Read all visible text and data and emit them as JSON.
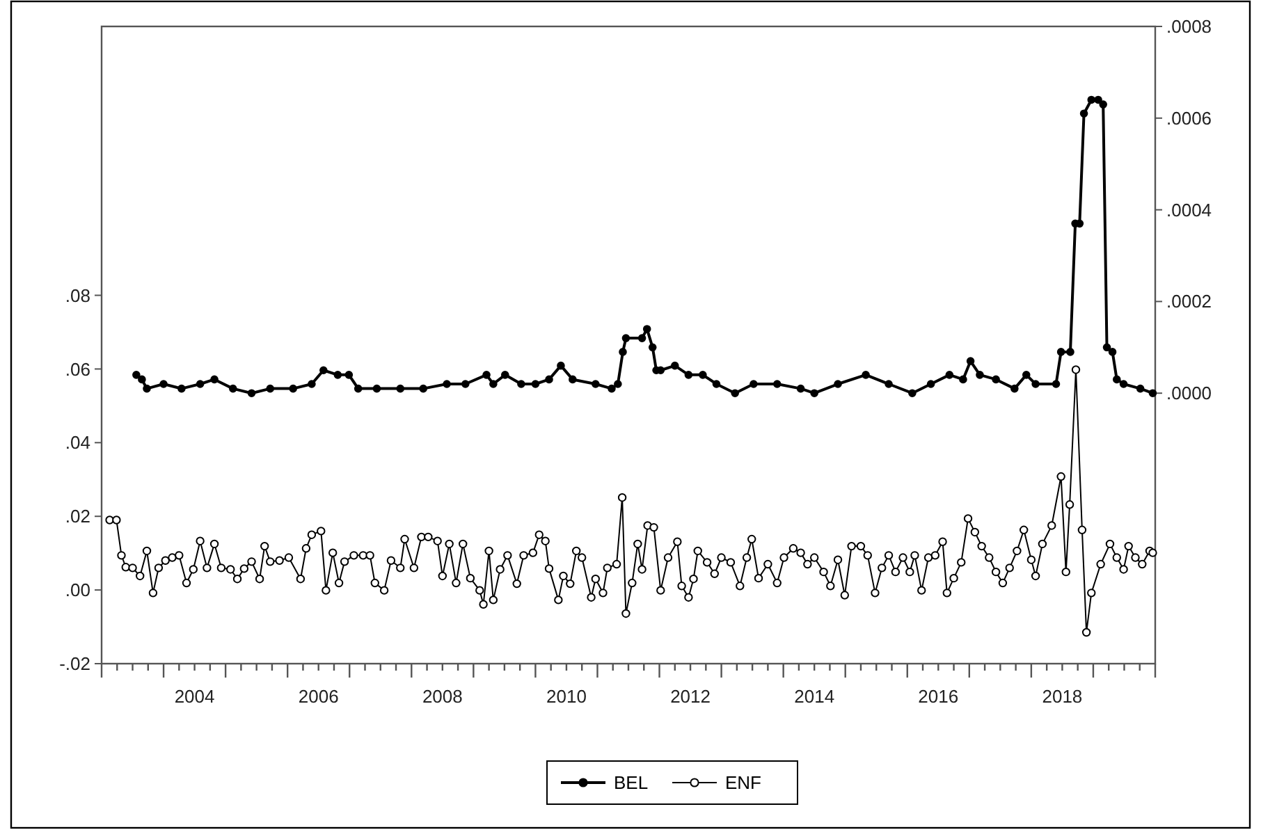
{
  "chart_data": {
    "type": "line",
    "marker": "circle",
    "legend": "bottom",
    "xlim": [
      2003,
      2020
    ],
    "ylim": [
      -0.02,
      0.153
    ],
    "y2lim": [
      -0.00059,
      0.0008
    ],
    "yticks": [
      {
        "value": -0.02,
        "label": "-.02"
      },
      {
        "value": 0,
        "label": ".00"
      },
      {
        "value": 0.02,
        "label": ".02"
      },
      {
        "value": 0.04,
        "label": ".04"
      },
      {
        "value": 0.06,
        "label": ".06"
      },
      {
        "value": 0.08,
        "label": ".08"
      }
    ],
    "y2ticks": [
      {
        "value": 0,
        "label": ".0000"
      },
      {
        "value": 0.0002,
        "label": ".0002"
      },
      {
        "value": 0.0004,
        "label": ".0004"
      },
      {
        "value": 0.0006,
        "label": ".0006"
      },
      {
        "value": 0.0008,
        "label": ".0008"
      }
    ],
    "xticks": [
      {
        "value": 2004.5,
        "label": "2004"
      },
      {
        "value": 2006.5,
        "label": "2006"
      },
      {
        "value": 2008.5,
        "label": "2008"
      },
      {
        "value": 2010.5,
        "label": "2010"
      },
      {
        "value": 2012.5,
        "label": "2012"
      },
      {
        "value": 2014.5,
        "label": "2014"
      },
      {
        "value": 2016.5,
        "label": "2016"
      },
      {
        "value": 2018.5,
        "label": "2018"
      },
      {
        "value": 2003,
        "label": null
      },
      {
        "value": 2003.25,
        "label": null
      },
      {
        "value": 2003.5,
        "label": null
      },
      {
        "value": 2003.75,
        "label": null
      },
      {
        "value": 2004,
        "label": null
      },
      {
        "value": 2004.25,
        "label": null
      },
      {
        "value": 2004.5,
        "label": null
      },
      {
        "value": 2004.75,
        "label": null
      },
      {
        "value": 2005,
        "label": null
      },
      {
        "value": 2005.25,
        "label": null
      },
      {
        "value": 2005.5,
        "label": null
      },
      {
        "value": 2005.75,
        "label": null
      },
      {
        "value": 2006,
        "label": null
      },
      {
        "value": 2006.25,
        "label": null
      },
      {
        "value": 2006.5,
        "label": null
      },
      {
        "value": 2006.75,
        "label": null
      },
      {
        "value": 2007,
        "label": null
      },
      {
        "value": 2007.25,
        "label": null
      },
      {
        "value": 2007.5,
        "label": null
      },
      {
        "value": 2007.75,
        "label": null
      },
      {
        "value": 2008,
        "label": null
      },
      {
        "value": 2008.25,
        "label": null
      },
      {
        "value": 2008.5,
        "label": null
      },
      {
        "value": 2008.75,
        "label": null
      },
      {
        "value": 2009,
        "label": null
      },
      {
        "value": 2009.25,
        "label": null
      },
      {
        "value": 2009.5,
        "label": null
      },
      {
        "value": 2009.75,
        "label": null
      },
      {
        "value": 2010,
        "label": null
      },
      {
        "value": 2010.25,
        "label": null
      },
      {
        "value": 2010.5,
        "label": null
      },
      {
        "value": 2010.75,
        "label": null
      },
      {
        "value": 2011,
        "label": null
      },
      {
        "value": 2011.25,
        "label": null
      },
      {
        "value": 2011.5,
        "label": null
      },
      {
        "value": 2011.75,
        "label": null
      },
      {
        "value": 2012,
        "label": null
      },
      {
        "value": 2012.25,
        "label": null
      },
      {
        "value": 2012.5,
        "label": null
      },
      {
        "value": 2012.75,
        "label": null
      },
      {
        "value": 2013,
        "label": null
      },
      {
        "value": 2013.25,
        "label": null
      },
      {
        "value": 2013.5,
        "label": null
      },
      {
        "value": 2013.75,
        "label": null
      },
      {
        "value": 2014,
        "label": null
      },
      {
        "value": 2014.25,
        "label": null
      },
      {
        "value": 2014.5,
        "label": null
      },
      {
        "value": 2014.75,
        "label": null
      },
      {
        "value": 2015,
        "label": null
      },
      {
        "value": 2015.25,
        "label": null
      },
      {
        "value": 2015.5,
        "label": null
      },
      {
        "value": 2015.75,
        "label": null
      },
      {
        "value": 2016,
        "label": null
      },
      {
        "value": 2016.25,
        "label": null
      },
      {
        "value": 2016.5,
        "label": null
      },
      {
        "value": 2016.75,
        "label": null
      },
      {
        "value": 2017,
        "label": null
      },
      {
        "value": 2017.25,
        "label": null
      },
      {
        "value": 2017.5,
        "label": null
      },
      {
        "value": 2017.75,
        "label": null
      },
      {
        "value": 2018,
        "label": null
      },
      {
        "value": 2018.25,
        "label": null
      },
      {
        "value": 2018.5,
        "label": null
      },
      {
        "value": 2018.75,
        "label": null
      },
      {
        "value": 2019,
        "label": null
      },
      {
        "value": 2019.25,
        "label": null
      },
      {
        "value": 2019.5,
        "label": null
      },
      {
        "value": 2019.75,
        "label": null
      },
      {
        "value": 2020,
        "label": null
      }
    ],
    "series": [
      {
        "name": "BEL",
        "color": "#000000",
        "axis": "y2",
        "x": [
          2003.56,
          2003.65,
          2003.73,
          2004.0,
          2004.29,
          2004.59,
          2004.82,
          2005.12,
          2005.42,
          2005.72,
          2006.09,
          2006.39,
          2006.58,
          2006.81,
          2006.99,
          2007.14,
          2007.44,
          2007.82,
          2008.19,
          2008.57,
          2008.87,
          2009.21,
          2009.32,
          2009.51,
          2009.77,
          2010.0,
          2010.22,
          2010.41,
          2010.6,
          2010.97,
          2011.23,
          2011.33,
          2011.41,
          2011.46,
          2011.72,
          2011.8,
          2011.89,
          2011.95,
          2012.02,
          2012.25,
          2012.47,
          2012.7,
          2012.92,
          2013.22,
          2013.52,
          2013.9,
          2014.28,
          2014.5,
          2014.88,
          2015.33,
          2015.7,
          2016.08,
          2016.38,
          2016.68,
          2016.9,
          2017.02,
          2017.17,
          2017.43,
          2017.73,
          2017.92,
          2018.07,
          2018.4,
          2018.48,
          2018.63,
          2018.71,
          2018.78,
          2018.85,
          2018.97,
          2019.08,
          2019.16,
          2019.22,
          2019.31,
          2019.38,
          2019.49,
          2019.76,
          2019.96
        ],
        "values": [
          4e-05,
          3e-05,
          1e-05,
          2e-05,
          1e-05,
          2e-05,
          3e-05,
          1e-05,
          0,
          1e-05,
          1e-05,
          2e-05,
          5e-05,
          4e-05,
          4e-05,
          1e-05,
          1e-05,
          1e-05,
          1e-05,
          2e-05,
          2e-05,
          4e-05,
          2e-05,
          4e-05,
          2e-05,
          2e-05,
          3e-05,
          6e-05,
          3e-05,
          2e-05,
          1e-05,
          2e-05,
          9e-05,
          0.00012,
          0.00012,
          0.00014,
          0.0001,
          5e-05,
          5e-05,
          6e-05,
          4e-05,
          4e-05,
          2e-05,
          0,
          2e-05,
          2e-05,
          1e-05,
          0,
          2e-05,
          4e-05,
          2e-05,
          0,
          2e-05,
          4e-05,
          3e-05,
          7e-05,
          4e-05,
          3e-05,
          1e-05,
          4e-05,
          2e-05,
          2e-05,
          9e-05,
          9e-05,
          0.00037,
          0.00037,
          0.00061,
          0.00064,
          0.00064,
          0.00063,
          0.0001,
          9e-05,
          3e-05,
          2e-05,
          1e-05,
          0
        ]
      },
      {
        "name": "ENF",
        "color": "#000000",
        "x": [
          2003.13,
          2003.24,
          2003.32,
          2003.39,
          2003.5,
          2003.62,
          2003.73,
          2003.83,
          2003.92,
          2004.03,
          2004.14,
          2004.25,
          2004.37,
          2004.48,
          2004.59,
          2004.7,
          2004.82,
          2004.93,
          2005.08,
          2005.19,
          2005.3,
          2005.42,
          2005.55,
          2005.63,
          2005.72,
          2005.87,
          2006.02,
          2006.21,
          2006.3,
          2006.39,
          2006.54,
          2006.62,
          2006.73,
          2006.83,
          2006.92,
          2007.07,
          2007.22,
          2007.33,
          2007.41,
          2007.56,
          2007.67,
          2007.82,
          2007.89,
          2008.04,
          2008.16,
          2008.27,
          2008.42,
          2008.5,
          2008.61,
          2008.72,
          2008.83,
          2008.95,
          2009.1,
          2009.16,
          2009.25,
          2009.32,
          2009.43,
          2009.55,
          2009.7,
          2009.81,
          2009.96,
          2010.06,
          2010.16,
          2010.22,
          2010.37,
          2010.45,
          2010.56,
          2010.66,
          2010.75,
          2010.9,
          2010.97,
          2011.09,
          2011.16,
          2011.31,
          2011.4,
          2011.46,
          2011.56,
          2011.65,
          2011.72,
          2011.81,
          2011.91,
          2012.02,
          2012.14,
          2012.29,
          2012.36,
          2012.47,
          2012.55,
          2012.62,
          2012.77,
          2012.89,
          2013.0,
          2013.15,
          2013.3,
          2013.41,
          2013.49,
          2013.6,
          2013.75,
          2013.9,
          2014.01,
          2014.16,
          2014.28,
          2014.39,
          2014.5,
          2014.65,
          2014.76,
          2014.88,
          2014.99,
          2015.1,
          2015.25,
          2015.36,
          2015.48,
          2015.59,
          2015.7,
          2015.81,
          2015.93,
          2016.04,
          2016.12,
          2016.23,
          2016.34,
          2016.45,
          2016.57,
          2016.64,
          2016.75,
          2016.87,
          2016.98,
          2017.09,
          2017.2,
          2017.32,
          2017.43,
          2017.54,
          2017.65,
          2017.77,
          2017.88,
          2018.0,
          2018.07,
          2018.18,
          2018.33,
          2018.48,
          2018.56,
          2018.62,
          2018.72,
          2018.82,
          2018.89,
          2018.97,
          2019.12,
          2019.27,
          2019.38,
          2019.49,
          2019.57,
          2019.68,
          2019.79,
          2019.91,
          2019.96
        ],
        "values": [
          0.019,
          0.019,
          0.0094,
          0.0062,
          0.006,
          0.0038,
          0.0106,
          -0.0008,
          0.006,
          0.008,
          0.0088,
          0.0094,
          0.0019,
          0.0056,
          0.0133,
          0.006,
          0.0125,
          0.006,
          0.0056,
          0.003,
          0.0058,
          0.0077,
          0.003,
          0.0119,
          0.0077,
          0.008,
          0.0088,
          0.003,
          0.0113,
          0.015,
          0.016,
          -0.0001,
          0.0101,
          0.0019,
          0.0077,
          0.0094,
          0.0094,
          0.0094,
          0.0019,
          -0.0001,
          0.008,
          0.006,
          0.0138,
          0.006,
          0.0144,
          0.0144,
          0.0133,
          0.0038,
          0.0125,
          0.0019,
          0.0125,
          0.0032,
          -0.0001,
          -0.0039,
          0.0106,
          -0.0027,
          0.0056,
          0.0094,
          0.0017,
          0.0094,
          0.0101,
          0.015,
          0.0133,
          0.0058,
          -0.0027,
          0.0038,
          0.0017,
          0.0106,
          0.0088,
          -0.002,
          0.003,
          -0.0008,
          0.006,
          0.007,
          0.0251,
          -0.0064,
          0.0019,
          0.0125,
          0.0056,
          0.0175,
          0.017,
          -0.0001,
          0.0088,
          0.0131,
          0.0011,
          -0.002,
          0.003,
          0.0106,
          0.0075,
          0.0044,
          0.0088,
          0.0075,
          0.0011,
          0.0088,
          0.0138,
          0.0032,
          0.007,
          0.0019,
          0.0088,
          0.0113,
          0.0101,
          0.007,
          0.0088,
          0.0049,
          0.0011,
          0.0082,
          -0.0014,
          0.0119,
          0.0119,
          0.0094,
          -0.0008,
          0.006,
          0.0094,
          0.0049,
          0.0088,
          0.0049,
          0.0094,
          -0.0001,
          0.0088,
          0.0094,
          0.0131,
          -0.0008,
          0.0032,
          0.0075,
          0.0194,
          0.0157,
          0.0119,
          0.0088,
          0.0049,
          0.0019,
          0.006,
          0.0106,
          0.0163,
          0.0082,
          0.0038,
          0.0125,
          0.0175,
          0.0308,
          0.0049,
          0.0232,
          0.0598,
          0.0163,
          -0.0115,
          -0.0008,
          0.007,
          0.0125,
          0.0088,
          0.0056,
          0.0119,
          0.0088,
          0.007,
          0.0106,
          0.0101
        ]
      }
    ]
  }
}
